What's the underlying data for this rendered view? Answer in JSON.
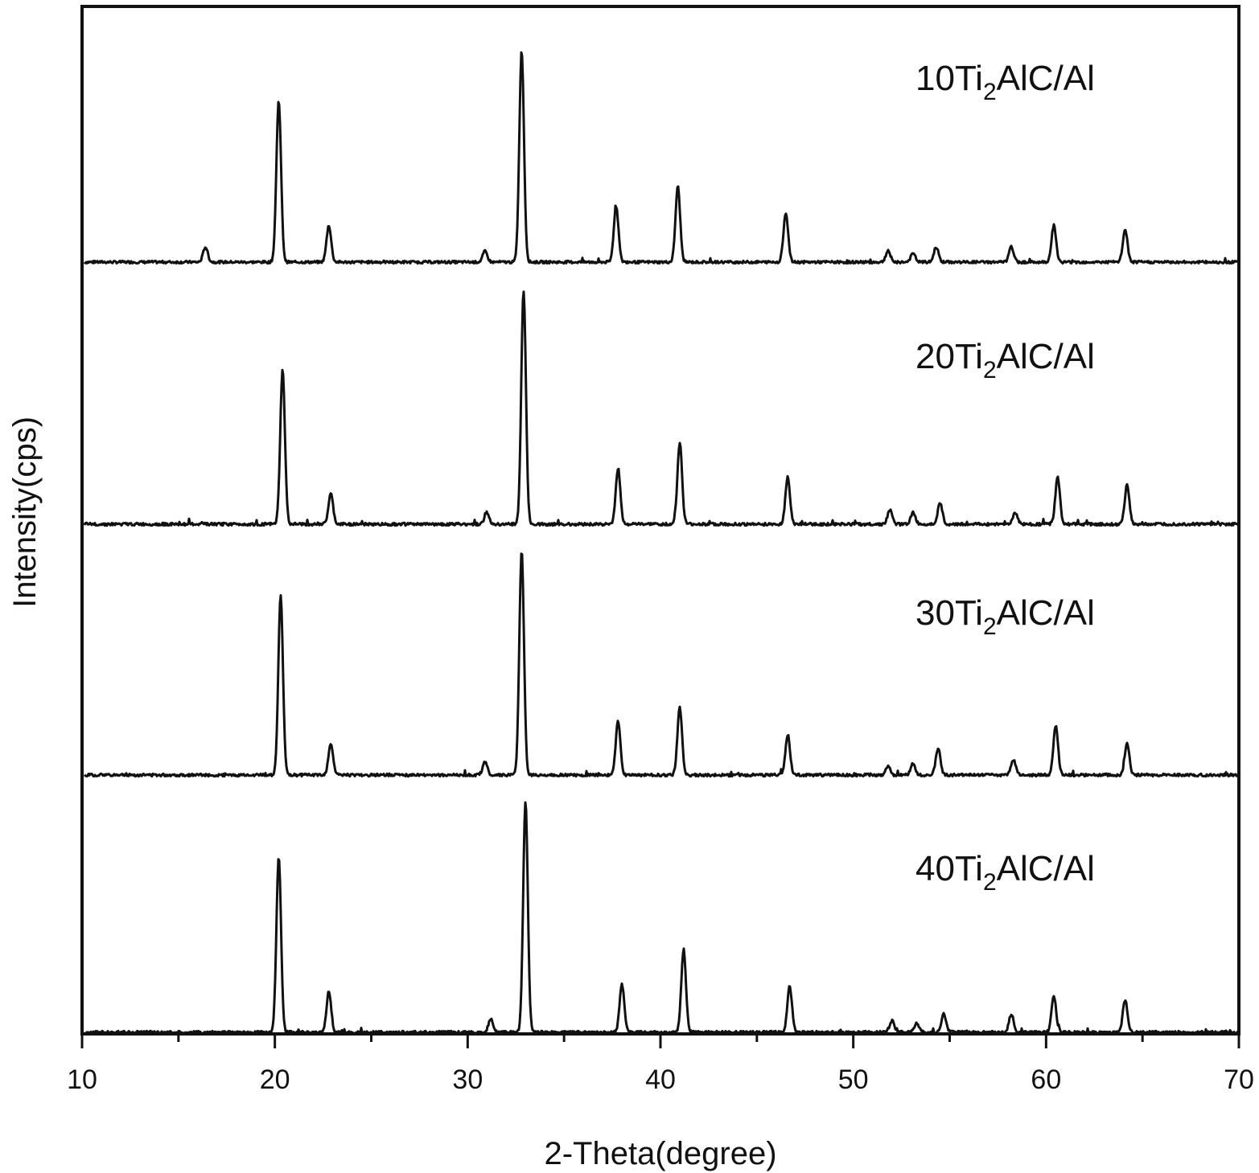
{
  "chart_data": {
    "type": "line",
    "xlabel": "2-Theta(degree)",
    "ylabel": "Intensity(cps)",
    "xlim": [
      10,
      70
    ],
    "x_ticks": [
      "10",
      "20",
      "30",
      "40",
      "50",
      "60",
      "70"
    ],
    "y_ticks_labeled": false,
    "grid": false,
    "legend": "none (series labels at top-right of each trace)",
    "line_color": "#111111",
    "series": [
      {
        "name_parts": {
          "pre": "10Ti",
          "sub": "2",
          "post": "AlC/Al"
        },
        "baseline": 0,
        "peaks": [
          {
            "x": 16.4,
            "h": 0.07
          },
          {
            "x": 20.2,
            "h": 0.75
          },
          {
            "x": 22.8,
            "h": 0.17
          },
          {
            "x": 30.9,
            "h": 0.05
          },
          {
            "x": 32.8,
            "h": 0.98
          },
          {
            "x": 37.7,
            "h": 0.26
          },
          {
            "x": 40.9,
            "h": 0.35
          },
          {
            "x": 46.5,
            "h": 0.23
          },
          {
            "x": 51.8,
            "h": 0.05
          },
          {
            "x": 53.1,
            "h": 0.04
          },
          {
            "x": 54.3,
            "h": 0.07
          },
          {
            "x": 58.2,
            "h": 0.07
          },
          {
            "x": 60.4,
            "h": 0.17
          },
          {
            "x": 64.1,
            "h": 0.15
          }
        ]
      },
      {
        "name_parts": {
          "pre": "20Ti",
          "sub": "2",
          "post": "AlC/Al"
        },
        "baseline": 0,
        "peaks": [
          {
            "x": 20.4,
            "h": 0.66
          },
          {
            "x": 22.9,
            "h": 0.13
          },
          {
            "x": 31.0,
            "h": 0.05
          },
          {
            "x": 32.9,
            "h": 1.0
          },
          {
            "x": 37.8,
            "h": 0.24
          },
          {
            "x": 41.0,
            "h": 0.35
          },
          {
            "x": 46.6,
            "h": 0.2
          },
          {
            "x": 51.9,
            "h": 0.06
          },
          {
            "x": 53.1,
            "h": 0.05
          },
          {
            "x": 54.5,
            "h": 0.09
          },
          {
            "x": 58.4,
            "h": 0.05
          },
          {
            "x": 60.6,
            "h": 0.2
          },
          {
            "x": 64.2,
            "h": 0.17
          }
        ]
      },
      {
        "name_parts": {
          "pre": "30Ti",
          "sub": "2",
          "post": "AlC/Al"
        },
        "baseline": 0,
        "peaks": [
          {
            "x": 20.3,
            "h": 0.8
          },
          {
            "x": 22.9,
            "h": 0.14
          },
          {
            "x": 30.9,
            "h": 0.06
          },
          {
            "x": 32.8,
            "h": 1.0
          },
          {
            "x": 37.8,
            "h": 0.24
          },
          {
            "x": 41.0,
            "h": 0.3
          },
          {
            "x": 46.6,
            "h": 0.18
          },
          {
            "x": 51.8,
            "h": 0.04
          },
          {
            "x": 53.1,
            "h": 0.05
          },
          {
            "x": 54.4,
            "h": 0.12
          },
          {
            "x": 58.3,
            "h": 0.07
          },
          {
            "x": 60.5,
            "h": 0.22
          },
          {
            "x": 64.2,
            "h": 0.14
          }
        ]
      },
      {
        "name_parts": {
          "pre": "40Ti",
          "sub": "2",
          "post": "AlC/Al"
        },
        "baseline": 0,
        "peaks": [
          {
            "x": 20.2,
            "h": 0.76
          },
          {
            "x": 22.8,
            "h": 0.18
          },
          {
            "x": 31.2,
            "h": 0.06
          },
          {
            "x": 33.0,
            "h": 1.0
          },
          {
            "x": 38.0,
            "h": 0.21
          },
          {
            "x": 41.2,
            "h": 0.36
          },
          {
            "x": 46.7,
            "h": 0.2
          },
          {
            "x": 52.0,
            "h": 0.05
          },
          {
            "x": 53.3,
            "h": 0.04
          },
          {
            "x": 54.7,
            "h": 0.08
          },
          {
            "x": 58.2,
            "h": 0.08
          },
          {
            "x": 60.4,
            "h": 0.16
          },
          {
            "x": 64.1,
            "h": 0.14
          }
        ]
      }
    ]
  }
}
